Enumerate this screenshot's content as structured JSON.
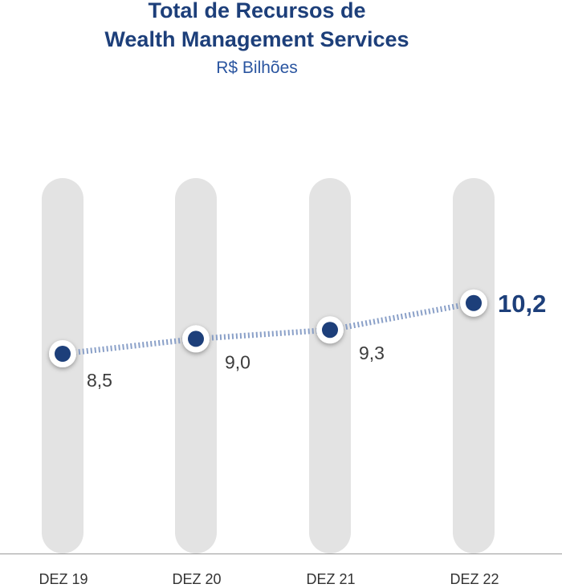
{
  "chart_data": {
    "type": "line",
    "title_line1": "Total de Recursos de",
    "title_line2": "Wealth Management Services",
    "subtitle": "R$ Bilhões",
    "categories": [
      "DEZ 19",
      "DEZ 20",
      "DEZ 21",
      "DEZ 22"
    ],
    "values": [
      8.5,
      9.0,
      9.3,
      10.2
    ],
    "value_labels": [
      "8,5",
      "9,0",
      "9,3",
      "10,2"
    ],
    "colors": {
      "marker": "#1d3f7a",
      "highlight": "#1d3f7a",
      "column": "#e3e3e3",
      "connector": "#8aa0c8"
    },
    "grid": false,
    "legend": "none"
  }
}
